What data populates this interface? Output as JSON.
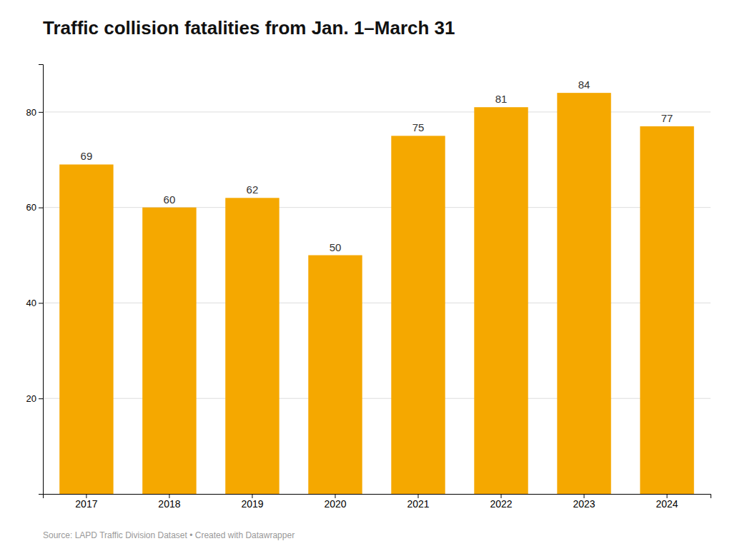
{
  "chart_data": {
    "type": "bar",
    "title": "Traffic collision fatalities from Jan. 1–March 31",
    "caption": "Source: LAPD Traffic Division Dataset • Created with Datawrapper",
    "categories": [
      "2017",
      "2018",
      "2019",
      "2020",
      "2021",
      "2022",
      "2023",
      "2024"
    ],
    "values": [
      69,
      60,
      62,
      50,
      75,
      81,
      84,
      77
    ],
    "color": "#F5A800",
    "ylim": [
      0,
      90
    ],
    "yticks": [
      20,
      40,
      60,
      80
    ],
    "grid": true,
    "data_labels": true
  }
}
